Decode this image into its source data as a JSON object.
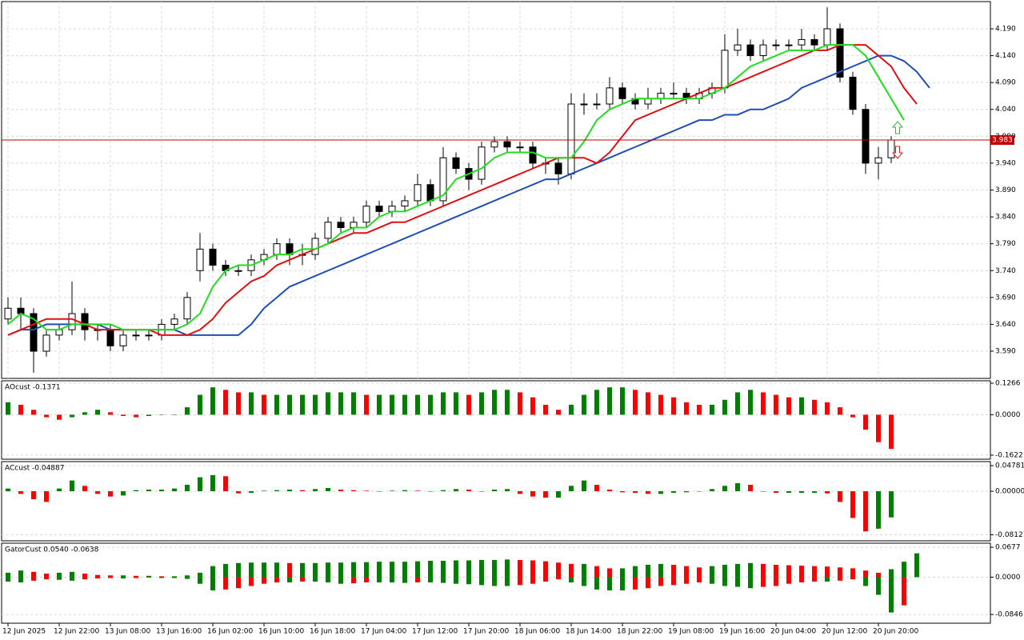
{
  "chart_data": [
    {
      "type": "candlestick",
      "categories": [
        "12 Jun 2025",
        null,
        null,
        null,
        "12 Jun 22:00",
        null,
        null,
        null,
        "13 Jun 08:00",
        null,
        null,
        null,
        "13 Jun 16:00",
        null,
        null,
        null,
        "16 Jun 02:00",
        null,
        null,
        null,
        "16 Jun 10:00",
        null,
        null,
        null,
        "16 Jun 18:00",
        null,
        null,
        null,
        "17 Jun 04:00",
        null,
        null,
        null,
        "17 Jun 12:00",
        null,
        null,
        null,
        "17 Jun 20:00",
        null,
        null,
        null,
        "18 Jun 06:00",
        null,
        null,
        null,
        "18 Jun 14:00",
        null,
        null,
        null,
        "18 Jun 22:00",
        null,
        null,
        null,
        "19 Jun 08:00",
        null,
        null,
        null,
        "19 Jun 16:00",
        null,
        null,
        null,
        "20 Jun 04:00",
        null,
        null,
        null,
        "20 Jun 12:00",
        null,
        null,
        null,
        "20 Jun 20:00",
        null,
        null,
        null,
        null
      ],
      "open": [
        3.65,
        3.67,
        3.66,
        3.59,
        3.62,
        3.63,
        3.66,
        3.63,
        3.63,
        3.6,
        3.62,
        3.62,
        3.62,
        3.64,
        3.65,
        3.74,
        3.78,
        3.75,
        3.74,
        3.74,
        3.76,
        3.77,
        3.79,
        3.77,
        3.77,
        3.8,
        3.83,
        3.82,
        3.83,
        3.86,
        3.85,
        3.86,
        3.87,
        3.9,
        3.87,
        3.95,
        3.93,
        3.91,
        3.97,
        3.98,
        3.97,
        3.97,
        3.94,
        3.94,
        3.92,
        4.05,
        4.05,
        4.05,
        4.08,
        4.06,
        4.05,
        4.06,
        4.07,
        4.07,
        4.06,
        4.07,
        4.08,
        4.15,
        4.16,
        4.14,
        4.16,
        4.16,
        4.16,
        4.17,
        4.16,
        4.19,
        4.1,
        4.04,
        3.94,
        3.95,
        null,
        null,
        null
      ],
      "high": [
        3.69,
        3.69,
        3.67,
        3.63,
        3.64,
        3.72,
        3.67,
        3.64,
        3.64,
        3.63,
        3.63,
        3.63,
        3.65,
        3.66,
        3.7,
        3.81,
        3.79,
        3.76,
        3.75,
        3.77,
        3.78,
        3.8,
        3.8,
        3.79,
        3.81,
        3.84,
        3.84,
        3.84,
        3.87,
        3.87,
        3.87,
        3.88,
        3.92,
        3.91,
        3.97,
        3.96,
        3.94,
        3.98,
        3.99,
        3.99,
        3.98,
        3.98,
        3.95,
        3.95,
        4.07,
        4.07,
        4.07,
        4.1,
        4.09,
        4.07,
        4.08,
        4.08,
        4.09,
        4.08,
        4.08,
        4.09,
        4.18,
        4.19,
        4.17,
        4.17,
        4.17,
        4.17,
        4.19,
        4.18,
        4.23,
        4.2,
        4.11,
        4.05,
        3.97,
        3.99,
        null,
        null,
        null
      ],
      "low": [
        3.64,
        3.63,
        3.55,
        3.58,
        3.61,
        3.62,
        3.61,
        3.61,
        3.59,
        3.59,
        3.61,
        3.61,
        3.61,
        3.63,
        3.64,
        3.72,
        3.74,
        3.73,
        3.73,
        3.73,
        3.75,
        3.76,
        3.75,
        3.75,
        3.76,
        3.79,
        3.81,
        3.81,
        3.82,
        3.84,
        3.84,
        3.85,
        3.86,
        3.86,
        3.86,
        3.92,
        3.89,
        3.9,
        3.96,
        3.96,
        3.96,
        3.93,
        3.92,
        3.9,
        3.91,
        4.03,
        4.04,
        4.04,
        4.05,
        4.04,
        4.04,
        4.05,
        4.06,
        4.05,
        4.05,
        4.06,
        4.07,
        4.14,
        4.13,
        4.13,
        4.15,
        4.15,
        4.15,
        4.15,
        4.15,
        4.09,
        4.03,
        3.92,
        3.91,
        3.94,
        null,
        null,
        null
      ],
      "close": [
        3.67,
        3.66,
        3.59,
        3.62,
        3.63,
        3.66,
        3.63,
        3.63,
        3.6,
        3.62,
        3.62,
        3.62,
        3.64,
        3.65,
        3.69,
        3.78,
        3.75,
        3.74,
        3.74,
        3.76,
        3.77,
        3.79,
        3.77,
        3.77,
        3.8,
        3.83,
        3.82,
        3.83,
        3.86,
        3.85,
        3.86,
        3.87,
        3.9,
        3.87,
        3.95,
        3.93,
        3.91,
        3.97,
        3.98,
        3.97,
        3.97,
        3.94,
        3.94,
        3.92,
        4.05,
        4.05,
        4.05,
        4.08,
        4.06,
        4.05,
        4.06,
        4.07,
        4.07,
        4.06,
        4.07,
        4.08,
        4.15,
        4.16,
        4.14,
        4.16,
        4.16,
        4.16,
        4.17,
        4.16,
        4.19,
        4.1,
        4.04,
        3.94,
        3.95,
        3.983,
        null,
        null,
        null
      ],
      "series": [
        {
          "color": "#1f4fb4",
          "values": [
            3.62,
            3.63,
            3.63,
            3.64,
            3.64,
            3.64,
            3.64,
            3.64,
            3.63,
            3.63,
            3.63,
            3.63,
            3.63,
            3.63,
            3.62,
            3.62,
            3.62,
            3.62,
            3.62,
            3.64,
            3.67,
            3.69,
            3.71,
            3.72,
            3.73,
            3.74,
            3.75,
            3.76,
            3.77,
            3.78,
            3.79,
            3.8,
            3.81,
            3.82,
            3.83,
            3.84,
            3.85,
            3.86,
            3.87,
            3.88,
            3.89,
            3.9,
            3.91,
            3.91,
            3.92,
            3.93,
            3.94,
            3.95,
            3.96,
            3.97,
            3.98,
            3.99,
            4.0,
            4.01,
            4.02,
            4.02,
            4.03,
            4.03,
            4.04,
            4.04,
            4.05,
            4.06,
            4.08,
            4.09,
            4.1,
            4.11,
            4.12,
            4.13,
            4.14,
            4.14,
            4.13,
            4.11,
            4.08
          ]
        },
        {
          "color": "#e01010",
          "values": [
            3.62,
            3.63,
            3.64,
            3.65,
            3.65,
            3.65,
            3.64,
            3.63,
            3.63,
            3.63,
            3.63,
            3.63,
            3.62,
            3.62,
            3.62,
            3.63,
            3.65,
            3.68,
            3.7,
            3.72,
            3.73,
            3.75,
            3.76,
            3.77,
            3.78,
            3.79,
            3.8,
            3.81,
            3.81,
            3.82,
            3.83,
            3.83,
            3.84,
            3.85,
            3.86,
            3.87,
            3.88,
            3.89,
            3.9,
            3.91,
            3.92,
            3.93,
            3.94,
            3.95,
            3.95,
            3.95,
            3.94,
            3.96,
            3.99,
            4.02,
            4.03,
            4.04,
            4.05,
            4.06,
            4.07,
            4.08,
            4.08,
            4.09,
            4.1,
            4.11,
            4.12,
            4.13,
            4.14,
            4.15,
            4.15,
            4.16,
            4.16,
            4.16,
            4.14,
            4.12,
            4.08,
            4.05,
            null
          ]
        },
        {
          "color": "#22dd22",
          "values": [
            3.64,
            3.66,
            3.65,
            3.63,
            3.63,
            3.64,
            3.64,
            3.64,
            3.64,
            3.63,
            3.63,
            3.63,
            3.63,
            3.63,
            3.64,
            3.66,
            3.71,
            3.74,
            3.75,
            3.75,
            3.76,
            3.77,
            3.77,
            3.78,
            3.78,
            3.79,
            3.81,
            3.82,
            3.82,
            3.84,
            3.85,
            3.85,
            3.86,
            3.87,
            3.88,
            3.91,
            3.92,
            3.93,
            3.95,
            3.96,
            3.96,
            3.96,
            3.95,
            3.95,
            3.95,
            3.98,
            4.02,
            4.04,
            4.05,
            4.06,
            4.06,
            4.06,
            4.06,
            4.06,
            4.06,
            4.07,
            4.08,
            4.1,
            4.12,
            4.13,
            4.14,
            4.15,
            4.15,
            4.15,
            4.16,
            4.16,
            4.16,
            4.14,
            4.1,
            4.06,
            4.02,
            null,
            null
          ]
        }
      ],
      "current_price": 3.983,
      "current_price_color": "#c00000",
      "ylim": [
        3.5394,
        4.2406
      ],
      "yticks": [
        {
          "value": 3.59,
          "label": "3.590"
        },
        {
          "value": 3.64,
          "label": "3.640"
        },
        {
          "value": 3.69,
          "label": "3.690"
        },
        {
          "value": 3.74,
          "label": "3.740"
        },
        {
          "value": 3.79,
          "label": "3.790"
        },
        {
          "value": 3.84,
          "label": "3.840"
        },
        {
          "value": 3.89,
          "label": "3.890"
        },
        {
          "value": 3.94,
          "label": "3.940"
        },
        {
          "value": 3.99,
          "label": "3.990"
        },
        {
          "value": 4.04,
          "label": "4.040"
        },
        {
          "value": 4.09,
          "label": "4.090"
        },
        {
          "value": 4.14,
          "label": "4.140"
        },
        {
          "value": 4.19,
          "label": "4.190"
        }
      ],
      "grid": true
    },
    {
      "type": "oscillator",
      "title": "AOcust -0.1371",
      "color_up": "#008000",
      "color_down": "#ff0000",
      "values": [
        0.05,
        0.04,
        0.02,
        -0.01,
        -0.02,
        -0.01,
        0.01,
        0.02,
        0.01,
        -0.005,
        -0.01,
        -0.005,
        0.0,
        0.0,
        0.03,
        0.08,
        0.11,
        0.1,
        0.09,
        0.09,
        0.08,
        0.08,
        0.08,
        0.08,
        0.08,
        0.09,
        0.09,
        0.09,
        0.08,
        0.08,
        0.08,
        0.08,
        0.08,
        0.08,
        0.09,
        0.09,
        0.08,
        0.09,
        0.1,
        0.1,
        0.09,
        0.07,
        0.04,
        0.02,
        0.04,
        0.08,
        0.1,
        0.11,
        0.11,
        0.1,
        0.09,
        0.08,
        0.07,
        0.05,
        0.04,
        0.04,
        0.06,
        0.09,
        0.1,
        0.09,
        0.08,
        0.07,
        0.07,
        0.06,
        0.05,
        0.03,
        -0.01,
        -0.06,
        -0.11,
        -0.1371
      ],
      "ylim": [
        -0.1785,
        0.1363
      ],
      "yticks": [
        0.1266,
        {
          "value": 0,
          "label": "0.0000"
        },
        -0.1622
      ]
    },
    {
      "type": "oscillator",
      "title": "ACcust -0.04887",
      "color_up": "#008000",
      "color_down": "#ff0000",
      "values": [
        0.005,
        -0.005,
        -0.015,
        -0.02,
        0.005,
        0.02,
        0.01,
        -0.005,
        -0.01,
        -0.008,
        0.002,
        0.003,
        0.003,
        0.005,
        0.012,
        0.026,
        0.03,
        0.028,
        -0.004,
        -0.003,
        0.001,
        0.002,
        0.003,
        0.002,
        0.004,
        0.006,
        0.003,
        0.002,
        0.001,
        0.0,
        0.001,
        0.002,
        0.001,
        0.0,
        0.002,
        0.004,
        0.003,
        0.0,
        0.003,
        0.004,
        -0.005,
        -0.01,
        -0.012,
        -0.012,
        0.01,
        0.02,
        0.012,
        0.003,
        -0.002,
        -0.003,
        -0.005,
        -0.005,
        -0.003,
        -0.002,
        0.0,
        0.004,
        0.01,
        0.015,
        0.012,
        0.0,
        -0.003,
        -0.003,
        -0.003,
        -0.003,
        -0.004,
        -0.02,
        -0.05,
        -0.075,
        -0.07,
        -0.04887
      ],
      "ylim": [
        -0.0926,
        0.0553
      ],
      "yticks": [
        0.04781,
        {
          "value": 0,
          "label": "0.00000"
        },
        -0.08127
      ]
    },
    {
      "type": "gator",
      "title": "GatorCust 0.0540 -0.0638",
      "color_up": "#008000",
      "color_down": "#ff0000",
      "upper": [
        0.01,
        0.015,
        0.012,
        0.008,
        0.01,
        0.012,
        0.008,
        0.005,
        0.004,
        0.004,
        0.003,
        0.003,
        0.002,
        0.002,
        0.004,
        0.01,
        0.025,
        0.03,
        0.032,
        0.033,
        0.033,
        0.033,
        0.032,
        0.032,
        0.032,
        0.033,
        0.033,
        0.034,
        0.034,
        0.035,
        0.035,
        0.035,
        0.036,
        0.037,
        0.037,
        0.038,
        0.038,
        0.039,
        0.039,
        0.04,
        0.039,
        0.038,
        0.036,
        0.033,
        0.03,
        0.03,
        0.025,
        0.02,
        0.02,
        0.025,
        0.028,
        0.03,
        0.028,
        0.025,
        0.022,
        0.025,
        0.028,
        0.03,
        0.032,
        0.03,
        0.028,
        0.027,
        0.026,
        0.025,
        0.024,
        0.022,
        0.02,
        0.015,
        0.01,
        0.018,
        0.035,
        0.054,
        null
      ],
      "lower": [
        -0.01,
        -0.012,
        -0.008,
        -0.005,
        -0.006,
        -0.008,
        -0.005,
        -0.003,
        -0.002,
        -0.003,
        -0.002,
        -0.001,
        -0.002,
        -0.002,
        -0.004,
        -0.015,
        -0.03,
        -0.028,
        -0.025,
        -0.02,
        -0.015,
        -0.012,
        -0.012,
        -0.01,
        -0.01,
        -0.012,
        -0.015,
        -0.014,
        -0.012,
        -0.012,
        -0.012,
        -0.013,
        -0.012,
        -0.012,
        -0.013,
        -0.015,
        -0.016,
        -0.018,
        -0.02,
        -0.02,
        -0.018,
        -0.015,
        -0.01,
        -0.005,
        -0.012,
        -0.02,
        -0.028,
        -0.03,
        -0.03,
        -0.028,
        -0.025,
        -0.02,
        -0.018,
        -0.015,
        -0.012,
        -0.015,
        -0.02,
        -0.022,
        -0.025,
        -0.022,
        -0.02,
        -0.015,
        -0.012,
        -0.01,
        -0.01,
        -0.008,
        -0.005,
        -0.02,
        -0.04,
        -0.08,
        -0.0638,
        null,
        null
      ],
      "ylim": [
        -0.1043,
        0.0769
      ],
      "yticks": [
        0.0677,
        {
          "value": 0,
          "label": "0.0000"
        },
        -0.0846
      ]
    }
  ]
}
